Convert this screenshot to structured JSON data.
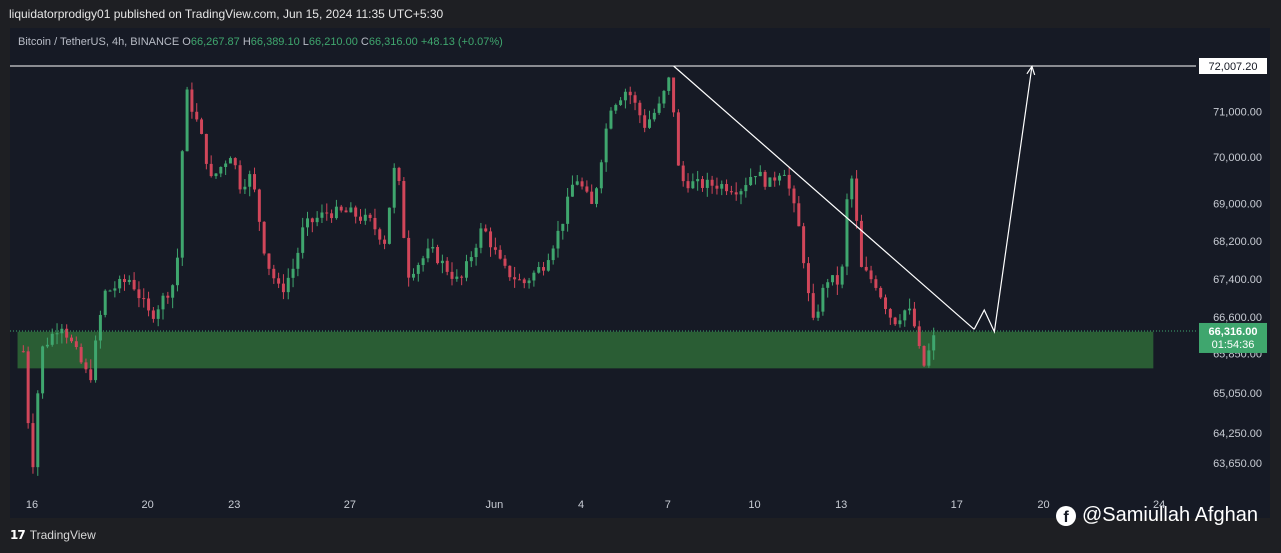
{
  "header": {
    "publish_info": "liquidatorprodigy01 published on TradingView.com, Jun 15, 2024 11:35 UTC+5:30"
  },
  "legend": {
    "symbol": "Bitcoin / TetherUS, 4h, BINANCE",
    "o_label": "O",
    "o_value": "66,267.87",
    "h_label": "H",
    "h_value": "66,389.10",
    "l_label": "L",
    "l_value": "66,210.00",
    "c_label": "C",
    "c_value": "66,316.00",
    "change": "+48.13 (+0.07%)"
  },
  "footer": {
    "brand_logo": "17",
    "brand_name": "TradingView",
    "social_handle": "@Samiullah Afghan",
    "social_icon": "facebook-icon"
  },
  "colors": {
    "up": "#3fa66e",
    "down": "#d1465a",
    "zone": "#2e6a37",
    "line": "#ffffff",
    "price_badge": "#3fa66e",
    "background": "#161a25"
  },
  "chart_data": {
    "type": "candlestick",
    "y_scale": "log",
    "ylim": [
      63300,
      72500
    ],
    "y_ticks": [
      {
        "value": 71000,
        "label": "71,000.00"
      },
      {
        "value": 70000,
        "label": "70,000.00"
      },
      {
        "value": 69000,
        "label": "69,000.00"
      },
      {
        "value": 68200,
        "label": "68,200.00"
      },
      {
        "value": 67400,
        "label": "67,400.00"
      },
      {
        "value": 66600,
        "label": "66,600.00"
      },
      {
        "value": 65850,
        "label": "65,850.00"
      },
      {
        "value": 65050,
        "label": "65,050.00"
      },
      {
        "value": 64250,
        "label": "64,250.00"
      },
      {
        "value": 63650,
        "label": "63,650.00"
      }
    ],
    "x_ticks": [
      {
        "label": "16",
        "day": 0
      },
      {
        "label": "20",
        "day": 4
      },
      {
        "label": "23",
        "day": 7
      },
      {
        "label": "27",
        "day": 11
      },
      {
        "label": "Jun",
        "day": 16
      },
      {
        "label": "4",
        "day": 19
      },
      {
        "label": "7",
        "day": 22
      },
      {
        "label": "10",
        "day": 25
      },
      {
        "label": "13",
        "day": 28
      },
      {
        "label": "17",
        "day": 32
      },
      {
        "label": "20",
        "day": 35
      },
      {
        "label": "24",
        "day": 39
      }
    ],
    "bars_per_day": 6,
    "resistance_level": {
      "value": 72007.2,
      "label": "72,007.20"
    },
    "last_price": {
      "value": 66316.0,
      "label": "66,316.00",
      "countdown": "01:54:36"
    },
    "support_zone": {
      "top": 66300,
      "bottom": 65550,
      "day_start": -0.5,
      "day_end": 38.8
    },
    "trendline": [
      {
        "day": 22.2,
        "price": 72007.2
      },
      {
        "day": 32.6,
        "price": 66350
      }
    ],
    "projection": [
      {
        "day": 32.6,
        "price": 66350
      },
      {
        "day": 32.95,
        "price": 66750
      },
      {
        "day": 33.3,
        "price": 66300
      },
      {
        "day": 34.6,
        "price": 72000
      }
    ],
    "anchors": [
      {
        "day": -0.3,
        "price": 65900
      },
      {
        "day": 0.0,
        "price": 63400
      },
      {
        "day": 0.3,
        "price": 65900
      },
      {
        "day": 1.0,
        "price": 66500
      },
      {
        "day": 2.0,
        "price": 65300
      },
      {
        "day": 2.5,
        "price": 67100
      },
      {
        "day": 3.4,
        "price": 67400
      },
      {
        "day": 4.1,
        "price": 66600
      },
      {
        "day": 5.0,
        "price": 67400
      },
      {
        "day": 5.3,
        "price": 71500
      },
      {
        "day": 5.8,
        "price": 70600
      },
      {
        "day": 6.2,
        "price": 69500
      },
      {
        "day": 6.9,
        "price": 70100
      },
      {
        "day": 7.2,
        "price": 69400
      },
      {
        "day": 7.6,
        "price": 69600
      },
      {
        "day": 8.1,
        "price": 67800
      },
      {
        "day": 8.6,
        "price": 67100
      },
      {
        "day": 9.1,
        "price": 67700
      },
      {
        "day": 9.4,
        "price": 68500
      },
      {
        "day": 10.2,
        "price": 68800
      },
      {
        "day": 11.0,
        "price": 68800
      },
      {
        "day": 11.7,
        "price": 68600
      },
      {
        "day": 12.2,
        "price": 68200
      },
      {
        "day": 12.6,
        "price": 70000
      },
      {
        "day": 13.0,
        "price": 67500
      },
      {
        "day": 13.8,
        "price": 68000
      },
      {
        "day": 14.8,
        "price": 67300
      },
      {
        "day": 15.6,
        "price": 68500
      },
      {
        "day": 16.3,
        "price": 67600
      },
      {
        "day": 17.0,
        "price": 67300
      },
      {
        "day": 17.7,
        "price": 67700
      },
      {
        "day": 18.3,
        "price": 68500
      },
      {
        "day": 18.8,
        "price": 69600
      },
      {
        "day": 19.4,
        "price": 68900
      },
      {
        "day": 20.0,
        "price": 71100
      },
      {
        "day": 20.6,
        "price": 71500
      },
      {
        "day": 21.2,
        "price": 70700
      },
      {
        "day": 21.7,
        "price": 71100
      },
      {
        "day": 22.1,
        "price": 71800
      },
      {
        "day": 22.4,
        "price": 69500
      },
      {
        "day": 23.0,
        "price": 69400
      },
      {
        "day": 23.8,
        "price": 69400
      },
      {
        "day": 24.5,
        "price": 69300
      },
      {
        "day": 25.0,
        "price": 69700
      },
      {
        "day": 25.5,
        "price": 69400
      },
      {
        "day": 26.0,
        "price": 69800
      },
      {
        "day": 26.6,
        "price": 68300
      },
      {
        "day": 27.0,
        "price": 66400
      },
      {
        "day": 27.5,
        "price": 67400
      },
      {
        "day": 28.0,
        "price": 67300
      },
      {
        "day": 28.3,
        "price": 69900
      },
      {
        "day": 28.7,
        "price": 67600
      },
      {
        "day": 29.2,
        "price": 67300
      },
      {
        "day": 29.8,
        "price": 66500
      },
      {
        "day": 30.3,
        "price": 66800
      },
      {
        "day": 30.6,
        "price": 66300
      },
      {
        "day": 30.8,
        "price": 65500
      },
      {
        "day": 31.3,
        "price": 66316
      }
    ]
  }
}
